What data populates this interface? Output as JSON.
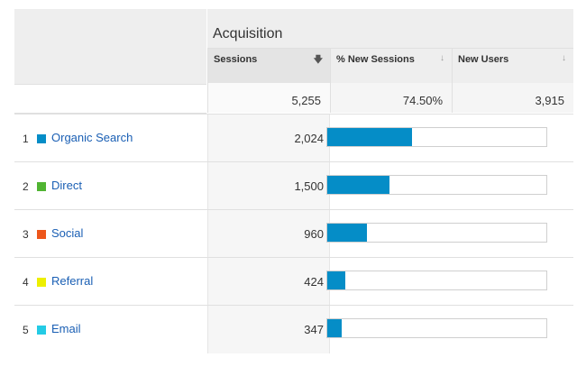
{
  "header": {
    "group_title": "Acquisition"
  },
  "columns": [
    {
      "label": "Sessions",
      "sort_icon": "sort-down-arrow-icon",
      "sorted": true
    },
    {
      "label": "% New Sessions",
      "sort_icon": "sort-arrow-icon",
      "sorted": false
    },
    {
      "label": "New Users",
      "sort_icon": "sort-arrow-icon",
      "sorted": false
    }
  ],
  "totals": {
    "sessions": "5,255",
    "pct_new_sessions": "74.50%",
    "new_users": "3,915"
  },
  "rows": [
    {
      "index": "1",
      "channel": "Organic Search",
      "color": "#058dc7",
      "sessions": "2,024",
      "bar_fraction": 0.385
    },
    {
      "index": "2",
      "channel": "Direct",
      "color": "#50b432",
      "sessions": "1,500",
      "bar_fraction": 0.285
    },
    {
      "index": "3",
      "channel": "Social",
      "color": "#ed561b",
      "sessions": "960",
      "bar_fraction": 0.183
    },
    {
      "index": "4",
      "channel": "Referral",
      "color": "#edef00",
      "sessions": "424",
      "bar_fraction": 0.081
    },
    {
      "index": "5",
      "channel": "Email",
      "color": "#24cbe5",
      "sessions": "347",
      "bar_fraction": 0.066
    }
  ]
}
